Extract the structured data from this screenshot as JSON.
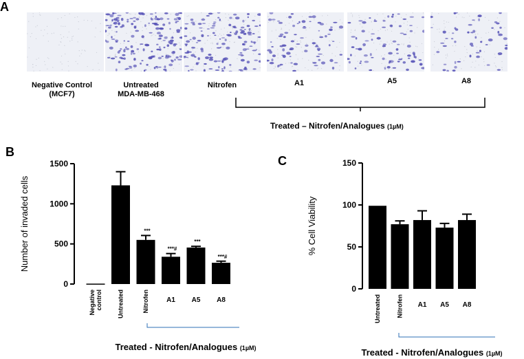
{
  "panels": {
    "a": "A",
    "b": "B",
    "c": "C"
  },
  "panel_a": {
    "images": [
      {
        "caption_line1": "Negative Control",
        "caption_line2": "(MCF7)",
        "density": 0
      },
      {
        "caption_line1": "Untreated",
        "caption_line2": "MDA-MB-468",
        "density": 1.0
      },
      {
        "caption_line1": "Nitrofen",
        "caption_line2": "",
        "density": 0.8
      },
      {
        "caption_line1": "A1",
        "caption_line2": "",
        "density": 0.45
      },
      {
        "caption_line1": "A5",
        "caption_line2": "",
        "density": 0.45
      },
      {
        "caption_line1": "A8",
        "caption_line2": "",
        "density": 0.3
      }
    ],
    "stain_color": "#5a56b8",
    "treated_label": "Treated – Nitrofen/Analogues",
    "treated_unit": "(1µM)"
  },
  "chart_data": [
    {
      "type": "bar",
      "title": "",
      "xlabel": "Treated - Nitrofen/Analogues",
      "xlabel_unit": "(1µM)",
      "ylabel": "Number of invaded cells",
      "ylim": [
        0,
        1500
      ],
      "yticks": [
        0,
        500,
        1000,
        1500
      ],
      "ytick_labels": [
        "0",
        "500",
        "1000",
        "1500"
      ],
      "categories": [
        "Negative control",
        "Untreated",
        "Nitrofen",
        "A1",
        "A5",
        "A8"
      ],
      "values": [
        5,
        1230,
        550,
        340,
        455,
        265
      ],
      "errors": [
        0,
        170,
        55,
        40,
        15,
        20
      ],
      "annotations": [
        "",
        "",
        "***",
        "***#",
        "***",
        "***#"
      ],
      "bar_color": "#000000",
      "grid": false
    },
    {
      "type": "bar",
      "title": "",
      "xlabel": "Treated - Nitrofen/Analogues",
      "xlabel_unit": "(1µM)",
      "ylabel": "% Cell Viability",
      "ylim": [
        0,
        150
      ],
      "yticks": [
        0,
        50,
        100,
        150
      ],
      "ytick_labels": [
        "0",
        "50",
        "100",
        "150"
      ],
      "categories": [
        "Untreated",
        "Nitrofen",
        "A1",
        "A5",
        "A8"
      ],
      "values": [
        99,
        77,
        82,
        73,
        82
      ],
      "errors": [
        0,
        4,
        11,
        5,
        7
      ],
      "bar_color": "#000000",
      "grid": false
    }
  ]
}
